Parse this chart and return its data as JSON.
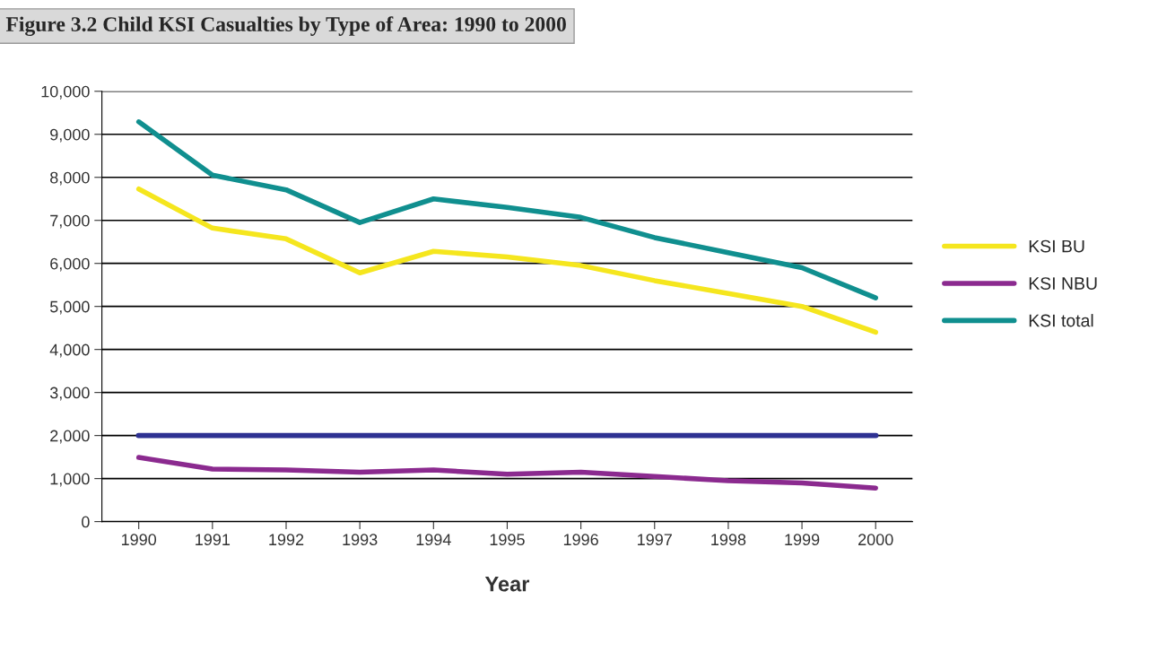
{
  "chart_data": {
    "type": "line",
    "title": "Figure 3.2 Child KSI Casualties by Type of Area: 1990 to 2000",
    "xlabel": "Year",
    "categories": [
      "1990",
      "1991",
      "1992",
      "1993",
      "1994",
      "1995",
      "1996",
      "1997",
      "1998",
      "1999",
      "2000"
    ],
    "series": [
      {
        "name": "KSI BU",
        "color": "#f5e61e",
        "values": [
          7730,
          6820,
          6570,
          5780,
          6280,
          6150,
          5950,
          5600,
          5300,
          5000,
          4400
        ]
      },
      {
        "name": "KSI NBU",
        "color": "#8b2a8f",
        "values": [
          1490,
          1220,
          1200,
          1150,
          1200,
          1100,
          1150,
          1050,
          950,
          900,
          780
        ]
      },
      {
        "name": "KSI total",
        "color": "#108f8f",
        "values": [
          9290,
          8050,
          7710,
          6950,
          7500,
          7300,
          7070,
          6600,
          6250,
          5900,
          5200
        ]
      }
    ],
    "ref_lines": [
      {
        "axis": "y",
        "value": 2000,
        "color": "#2e3192"
      }
    ],
    "ylim": [
      0,
      10000
    ],
    "yticks": [
      0,
      {
        "value": 1000,
        "label": "1,000"
      },
      {
        "value": 2000,
        "label": "2,000"
      },
      {
        "value": 3000,
        "label": "3,000"
      },
      {
        "value": 4000,
        "label": "4,000"
      },
      {
        "value": 5000,
        "label": "5,000"
      },
      {
        "value": 6000,
        "label": "6,000"
      },
      {
        "value": 7000,
        "label": "7,000"
      },
      {
        "value": 8000,
        "label": "8,000"
      },
      {
        "value": 9000,
        "label": "9,000"
      },
      {
        "value": 10000,
        "label": "10,000"
      }
    ],
    "grid": "y",
    "legend": "right",
    "marker": "none",
    "line_style": "solid"
  }
}
